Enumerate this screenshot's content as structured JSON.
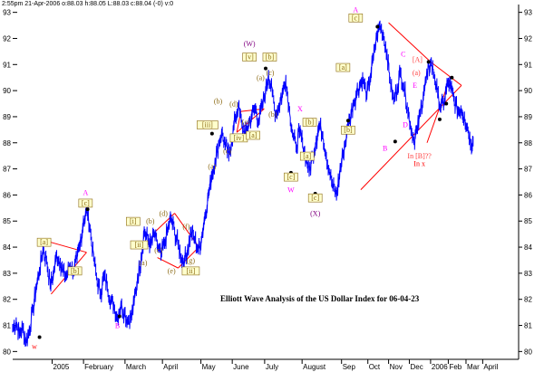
{
  "header": "2:55pm 21-Apr-2006 o:88.03 h:88.05 L:88.03 c:88.04 (-0) v:0",
  "chart_data": {
    "type": "line",
    "title": "Elliott Wave Analysis of the US Dollar Index for 06-04-23",
    "ylim": [
      79.7,
      93.3
    ],
    "xlim": [
      0,
      100
    ],
    "yticks": [
      80,
      81,
      82,
      83,
      84,
      85,
      86,
      87,
      88,
      89,
      90,
      91,
      92,
      93
    ],
    "grid": false,
    "series_color": "#0000ff",
    "months": [
      {
        "label": "2005",
        "x": 7.8
      },
      {
        "label": "February",
        "x": 14.0
      },
      {
        "label": "March",
        "x": 22.2
      },
      {
        "label": "April",
        "x": 29.6
      },
      {
        "label": "May",
        "x": 37.2
      },
      {
        "label": "June",
        "x": 43.4
      },
      {
        "label": "July",
        "x": 49.8
      },
      {
        "label": "August",
        "x": 57.2
      },
      {
        "label": "Sep",
        "x": 65.0
      },
      {
        "label": "Oct",
        "x": 70.2
      },
      {
        "label": "Nov",
        "x": 74.3
      },
      {
        "label": "Dec",
        "x": 78.4
      },
      {
        "label": "2006",
        "x": 82.6
      },
      {
        "label": "Feb",
        "x": 86.1
      },
      {
        "label": "Mar",
        "x": 89.6
      },
      {
        "label": "April",
        "x": 92.9
      }
    ],
    "anchors": [
      [
        0.0,
        80.9
      ],
      [
        0.7,
        81.1
      ],
      [
        1.3,
        80.7
      ],
      [
        2.0,
        80.9
      ],
      [
        2.6,
        80.35
      ],
      [
        3.3,
        80.8
      ],
      [
        4.0,
        81.6
      ],
      [
        4.6,
        82.4
      ],
      [
        5.3,
        83.1
      ],
      [
        6.0,
        83.9
      ],
      [
        6.7,
        83.5
      ],
      [
        7.4,
        82.6
      ],
      [
        8.0,
        82.9
      ],
      [
        8.7,
        83.7
      ],
      [
        9.4,
        83.4
      ],
      [
        10.0,
        83.0
      ],
      [
        10.7,
        82.9
      ],
      [
        11.4,
        83.3
      ],
      [
        12.0,
        83.1
      ],
      [
        12.7,
        83.5
      ],
      [
        13.3,
        84.1
      ],
      [
        14.0,
        85.0
      ],
      [
        14.7,
        85.4
      ],
      [
        15.3,
        84.7
      ],
      [
        16.0,
        83.6
      ],
      [
        16.7,
        82.7
      ],
      [
        17.4,
        82.2
      ],
      [
        18.0,
        82.9
      ],
      [
        18.7,
        82.5
      ],
      [
        19.4,
        82.0
      ],
      [
        20.0,
        81.7
      ],
      [
        20.7,
        81.3
      ],
      [
        21.4,
        81.8
      ],
      [
        22.1,
        81.5
      ],
      [
        22.7,
        81.2
      ],
      [
        23.4,
        81.3
      ],
      [
        24.0,
        81.9
      ],
      [
        24.7,
        82.8
      ],
      [
        25.4,
        83.6
      ],
      [
        26.0,
        84.6
      ],
      [
        26.7,
        84.3
      ],
      [
        27.3,
        84.1
      ],
      [
        28.0,
        84.5
      ],
      [
        28.7,
        84.0
      ],
      [
        29.3,
        83.7
      ],
      [
        30.0,
        84.1
      ],
      [
        30.7,
        84.7
      ],
      [
        31.3,
        85.1
      ],
      [
        32.0,
        84.6
      ],
      [
        32.7,
        84.1
      ],
      [
        33.3,
        83.6
      ],
      [
        34.0,
        83.5
      ],
      [
        34.6,
        83.9
      ],
      [
        35.3,
        84.6
      ],
      [
        36.0,
        84.3
      ],
      [
        36.7,
        83.9
      ],
      [
        37.3,
        84.3
      ],
      [
        38.0,
        85.2
      ],
      [
        38.7,
        86.0
      ],
      [
        39.3,
        86.7
      ],
      [
        40.0,
        87.3
      ],
      [
        40.7,
        87.9
      ],
      [
        41.3,
        88.4
      ],
      [
        42.0,
        87.9
      ],
      [
        42.7,
        87.5
      ],
      [
        43.3,
        88.1
      ],
      [
        44.0,
        88.9
      ],
      [
        44.6,
        89.4
      ],
      [
        45.3,
        88.7
      ],
      [
        46.0,
        88.3
      ],
      [
        46.6,
        88.7
      ],
      [
        47.3,
        89.1
      ],
      [
        48.0,
        89.3
      ],
      [
        48.6,
        88.8
      ],
      [
        49.3,
        89.4
      ],
      [
        50.0,
        90.0
      ],
      [
        50.6,
        90.6
      ],
      [
        51.3,
        89.9
      ],
      [
        52.0,
        89.1
      ],
      [
        52.6,
        89.4
      ],
      [
        53.3,
        89.9
      ],
      [
        54.0,
        90.4
      ],
      [
        54.6,
        89.4
      ],
      [
        55.3,
        88.4
      ],
      [
        56.0,
        87.8
      ],
      [
        56.7,
        88.4
      ],
      [
        57.3,
        88.0
      ],
      [
        58.0,
        87.4
      ],
      [
        58.6,
        86.9
      ],
      [
        59.3,
        87.5
      ],
      [
        60.0,
        88.1
      ],
      [
        60.6,
        88.7
      ],
      [
        61.3,
        88.3
      ],
      [
        62.0,
        87.5
      ],
      [
        62.6,
        86.9
      ],
      [
        63.3,
        86.3
      ],
      [
        64.0,
        86.0
      ],
      [
        64.6,
        86.8
      ],
      [
        65.3,
        87.6
      ],
      [
        66.0,
        88.3
      ],
      [
        66.6,
        88.9
      ],
      [
        67.3,
        89.5
      ],
      [
        68.0,
        89.9
      ],
      [
        68.7,
        90.3
      ],
      [
        69.3,
        90.4
      ],
      [
        70.0,
        89.8
      ],
      [
        70.6,
        90.4
      ],
      [
        71.3,
        91.3
      ],
      [
        72.0,
        92.1
      ],
      [
        72.6,
        92.5
      ],
      [
        73.3,
        92.1
      ],
      [
        74.0,
        91.4
      ],
      [
        74.6,
        90.4
      ],
      [
        75.3,
        89.6
      ],
      [
        76.0,
        90.1
      ],
      [
        76.6,
        90.7
      ],
      [
        77.3,
        90.2
      ],
      [
        78.0,
        89.4
      ],
      [
        78.6,
        88.7
      ],
      [
        79.3,
        88.1
      ],
      [
        80.0,
        88.5
      ],
      [
        80.6,
        89.2
      ],
      [
        81.3,
        90.0
      ],
      [
        82.0,
        90.6
      ],
      [
        82.6,
        91.1
      ],
      [
        83.3,
        90.6
      ],
      [
        84.0,
        89.9
      ],
      [
        84.6,
        89.3
      ],
      [
        85.3,
        89.6
      ],
      [
        86.0,
        90.3
      ],
      [
        86.6,
        90.1
      ],
      [
        87.3,
        89.6
      ],
      [
        88.0,
        89.2
      ],
      [
        88.6,
        89.3
      ],
      [
        89.3,
        89.0
      ],
      [
        90.0,
        88.5
      ],
      [
        90.6,
        88.0
      ],
      [
        91.0,
        88.04
      ]
    ],
    "pattern_lines_red": [
      [
        [
          7.6,
          82.2
        ],
        [
          14.6,
          83.8
        ]
      ],
      [
        [
          7.3,
          84.2
        ],
        [
          14.6,
          83.8
        ]
      ],
      [
        [
          28.2,
          84.6
        ],
        [
          32.0,
          85.3
        ]
      ],
      [
        [
          32.0,
          85.3
        ],
        [
          36.8,
          84.0
        ]
      ],
      [
        [
          28.6,
          83.6
        ],
        [
          32.7,
          83.2
        ]
      ],
      [
        [
          32.7,
          83.2
        ],
        [
          36.8,
          84.0
        ]
      ],
      [
        [
          45.1,
          89.2
        ],
        [
          49.7,
          89.3
        ]
      ],
      [
        [
          45.1,
          89.2
        ],
        [
          44.3,
          88.4
        ]
      ],
      [
        [
          44.3,
          88.4
        ],
        [
          49.7,
          89.3
        ]
      ],
      [
        [
          74.3,
          92.6
        ],
        [
          82.6,
          91.1
        ]
      ],
      [
        [
          82.6,
          91.1
        ],
        [
          88.7,
          90.2
        ]
      ],
      [
        [
          68.8,
          86.2
        ],
        [
          88.7,
          90.2
        ]
      ],
      [
        [
          81.9,
          88.0
        ],
        [
          86.3,
          90.4
        ]
      ]
    ],
    "wave_labels": [
      {
        "text": "w",
        "x": 4.3,
        "y": 80.1,
        "color": "#ff0000"
      },
      {
        "text": "[a]",
        "x": 6.2,
        "y": 84.1,
        "color": "#8b6914",
        "box": true
      },
      {
        "text": "[b]",
        "x": 12.3,
        "y": 83.0,
        "color": "#8b6914",
        "box": true
      },
      {
        "text": "A",
        "x": 14.4,
        "y": 86.0,
        "color": "#ff00ff"
      },
      {
        "text": "[c]",
        "x": 14.4,
        "y": 85.6,
        "color": "#8b6914",
        "box": true
      },
      {
        "text": "B",
        "x": 20.7,
        "y": 80.9,
        "color": "#ff00ff"
      },
      {
        "text": "[i]",
        "x": 23.8,
        "y": 84.9,
        "color": "#8b6914",
        "box": true
      },
      {
        "text": "[ii]",
        "x": 25.0,
        "y": 84.0,
        "color": "#8b6914",
        "box": true
      },
      {
        "text": "(a)",
        "x": 25.8,
        "y": 83.3,
        "color": "#8b6914"
      },
      {
        "text": "(b)",
        "x": 27.2,
        "y": 84.9,
        "color": "#8b6914"
      },
      {
        "text": "(c)",
        "x": 28.8,
        "y": 83.8,
        "color": "#8b6914"
      },
      {
        "text": "(d)",
        "x": 29.8,
        "y": 85.2,
        "color": "#8b6914"
      },
      {
        "text": "(e)",
        "x": 31.4,
        "y": 83.0,
        "color": "#8b6914"
      },
      {
        "text": "(f)",
        "x": 34.3,
        "y": 84.7,
        "color": "#8b6914"
      },
      {
        "text": "(g)",
        "x": 35.2,
        "y": 83.4,
        "color": "#8b6914"
      },
      {
        "text": "[ii]",
        "x": 35.2,
        "y": 83.0,
        "color": "#8b6914",
        "box": true
      },
      {
        "text": "[iii]",
        "x": 38.5,
        "y": 88.6,
        "color": "#8b6914",
        "box": true
      },
      {
        "text": "(a)",
        "x": 39.4,
        "y": 87.0,
        "color": "#8b6914"
      },
      {
        "text": "(b)",
        "x": 40.6,
        "y": 89.5,
        "color": "#8b6914"
      },
      {
        "text": "(c)",
        "x": 42.4,
        "y": 87.6,
        "color": "#8b6914"
      },
      {
        "text": "(d)",
        "x": 43.7,
        "y": 89.4,
        "color": "#8b6914"
      },
      {
        "text": "[iv]",
        "x": 44.7,
        "y": 88.1,
        "color": "#8b6914",
        "box": true
      },
      {
        "text": "(e)",
        "x": 46.1,
        "y": 88.7,
        "color": "#8b6914"
      },
      {
        "text": "(W)",
        "x": 46.8,
        "y": 91.7,
        "color": "#800080"
      },
      {
        "text": "[v]",
        "x": 46.8,
        "y": 91.2,
        "color": "#8b6914",
        "box": true
      },
      {
        "text": "[a]",
        "x": 47.5,
        "y": 88.2,
        "color": "#8b6914",
        "box": true
      },
      {
        "text": "(a)",
        "x": 49.0,
        "y": 90.4,
        "color": "#8b6914"
      },
      {
        "text": "[b]",
        "x": 50.8,
        "y": 91.2,
        "color": "#8b6914",
        "box": true
      },
      {
        "text": "(c)",
        "x": 50.9,
        "y": 90.6,
        "color": "#8b6914"
      },
      {
        "text": "(b)",
        "x": 51.4,
        "y": 89.0,
        "color": "#8b6914"
      },
      {
        "text": "W",
        "x": 55.0,
        "y": 86.1,
        "color": "#ff00ff"
      },
      {
        "text": "[c]",
        "x": 55.0,
        "y": 86.6,
        "color": "#8b6914",
        "box": true
      },
      {
        "text": "X",
        "x": 56.8,
        "y": 89.2,
        "color": "#ff00ff"
      },
      {
        "text": "[a]",
        "x": 58.2,
        "y": 87.4,
        "color": "#8b6914",
        "box": true
      },
      {
        "text": "[b]",
        "x": 58.7,
        "y": 88.7,
        "color": "#8b6914",
        "box": true
      },
      {
        "text": "[c]",
        "x": 59.8,
        "y": 85.8,
        "color": "#8b6914",
        "box": true
      },
      {
        "text": "(X)",
        "x": 59.8,
        "y": 85.2,
        "color": "#800080"
      },
      {
        "text": "[a]",
        "x": 65.3,
        "y": 90.8,
        "color": "#8b6914",
        "box": true
      },
      {
        "text": "[b]",
        "x": 66.3,
        "y": 88.4,
        "color": "#8b6914",
        "box": true
      },
      {
        "text": "A",
        "x": 67.8,
        "y": 93.0,
        "color": "#ff00ff"
      },
      {
        "text": "[c]",
        "x": 67.8,
        "y": 92.7,
        "color": "#8b6914",
        "box": true
      },
      {
        "text": "B",
        "x": 73.6,
        "y": 87.7,
        "color": "#ff00ff"
      },
      {
        "text": "C",
        "x": 77.2,
        "y": 91.3,
        "color": "#ff00ff"
      },
      {
        "text": "[A]",
        "x": 80.0,
        "y": 91.1,
        "color": "#ff4040"
      },
      {
        "text": "(a)",
        "x": 79.8,
        "y": 90.6,
        "color": "#ff4040"
      },
      {
        "text": "E",
        "x": 79.5,
        "y": 90.1,
        "color": "#ff00ff"
      },
      {
        "text": "D",
        "x": 77.6,
        "y": 88.6,
        "color": "#ff00ff"
      },
      {
        "text": "In [B]??",
        "x": 80.4,
        "y": 87.4,
        "color": "#ff4040"
      },
      {
        "text": "In x",
        "x": 80.4,
        "y": 87.1,
        "color": "#ff0000"
      }
    ],
    "pivot_points": [
      [
        5.3,
        80.55
      ],
      [
        14.8,
        85.45
      ],
      [
        21.1,
        81.35
      ],
      [
        39.4,
        88.35
      ],
      [
        50.0,
        90.85
      ],
      [
        55.0,
        86.85
      ],
      [
        59.8,
        86.05
      ],
      [
        66.3,
        88.85
      ],
      [
        72.1,
        92.45
      ],
      [
        75.6,
        88.05
      ],
      [
        82.2,
        91.1
      ],
      [
        84.4,
        88.9
      ],
      [
        85.7,
        89.5
      ],
      [
        86.8,
        90.5
      ]
    ]
  }
}
